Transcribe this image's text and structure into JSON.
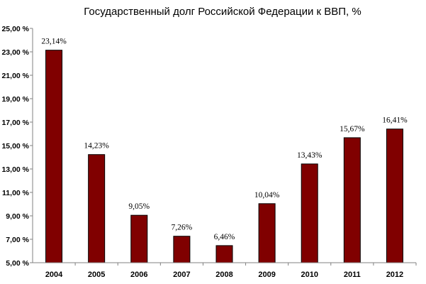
{
  "chart_data": {
    "type": "bar",
    "title": "Государственный долг Российской Федерации к ВВП, %",
    "categories": [
      "2004",
      "2005",
      "2006",
      "2007",
      "2008",
      "2009",
      "2010",
      "2011",
      "2012"
    ],
    "values": [
      23.14,
      14.23,
      9.05,
      7.26,
      6.46,
      10.04,
      13.43,
      15.67,
      16.41
    ],
    "data_labels": [
      "23,14%",
      "14,23%",
      "9,05%",
      "7,26%",
      "6,46%",
      "10,04%",
      "13,43%",
      "15,67%",
      "16,41%"
    ],
    "yticks": [
      5,
      7,
      9,
      11,
      13,
      15,
      17,
      19,
      21,
      23,
      25
    ],
    "ytick_labels": [
      "5,00 %",
      "7,00 %",
      "9,00 %",
      "11,00 %",
      "13,00 %",
      "15,00 %",
      "17,00 %",
      "19,00 %",
      "21,00 %",
      "23,00 %",
      "25,00 %"
    ],
    "ylim": [
      5,
      25
    ],
    "grid": false,
    "bar_color": "#800000",
    "axis_color": "#808080"
  }
}
